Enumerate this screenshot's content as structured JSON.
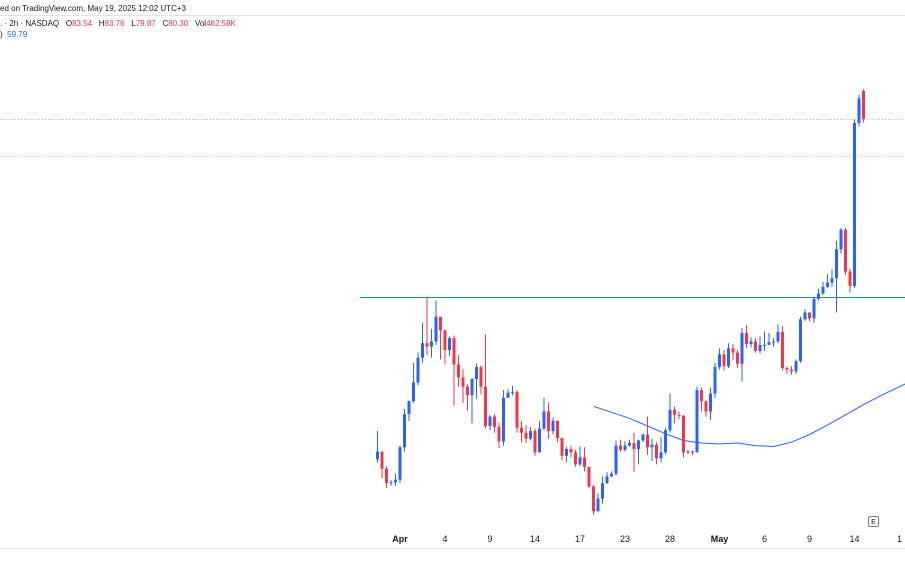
{
  "header": {
    "publish_text": "ed on TradingView.com, May 19, 2025 12:02 UTC+3",
    "symbol_text": ". · 2h · NASDAQ",
    "ohlc": [
      {
        "label": "O",
        "value": "83.54"
      },
      {
        "label": "H",
        "value": "83.76"
      },
      {
        "label": "L",
        "value": "79.87"
      },
      {
        "label": "C",
        "value": "80.30"
      },
      {
        "label": "Vol",
        "value": "462.58K"
      }
    ],
    "sma_prefix": ")",
    "sma_value": "59.79"
  },
  "colors": {
    "up": "#2962ff",
    "down": "#f23645",
    "sma": "#2962ff",
    "support_line": "#089981",
    "dotted_line": "#f7a3aa",
    "text": "#131722"
  },
  "e_marker": "E",
  "chart_data": {
    "type": "candlestick",
    "x_ticks": [
      {
        "label": "Apr",
        "bold": true
      },
      {
        "label": "4",
        "bold": false
      },
      {
        "label": "9",
        "bold": false
      },
      {
        "label": "14",
        "bold": false
      },
      {
        "label": "17",
        "bold": false
      },
      {
        "label": "23",
        "bold": false
      },
      {
        "label": "28",
        "bold": false
      },
      {
        "label": "May",
        "bold": true
      },
      {
        "label": "6",
        "bold": false
      },
      {
        "label": "9",
        "bold": false
      },
      {
        "label": "14",
        "bold": false
      },
      {
        "label": "1",
        "bold": false
      }
    ],
    "ylim": [
      30,
      90
    ],
    "horizontal_levels": [
      {
        "name": "resistance-upper",
        "value": 80.3,
        "style": "dotted"
      },
      {
        "name": "resistance-lower",
        "value": 75.9,
        "style": "dotted"
      },
      {
        "name": "support",
        "value": 59.4,
        "style": "solid"
      }
    ],
    "candles": [
      [
        40.4,
        41.3,
        43.7,
        40.0
      ],
      [
        41.3,
        39.3,
        41.3,
        38.2
      ],
      [
        39.3,
        37.6,
        39.6,
        37.0
      ],
      [
        37.6,
        37.7,
        38.0,
        37.3
      ],
      [
        37.7,
        38.0,
        38.7,
        37.3
      ],
      [
        38.0,
        41.8,
        42.0,
        37.6
      ],
      [
        41.8,
        45.7,
        46.3,
        41.3
      ],
      [
        45.7,
        47.2,
        47.3,
        44.9
      ],
      [
        47.2,
        49.4,
        51.7,
        47.0
      ],
      [
        49.4,
        52.3,
        52.9,
        49.1
      ],
      [
        52.3,
        54.0,
        56.4,
        51.7
      ],
      [
        54.0,
        53.6,
        59.4,
        52.6
      ],
      [
        53.6,
        54.2,
        55.7,
        52.3
      ],
      [
        54.2,
        57.1,
        59.0,
        53.8
      ],
      [
        57.1,
        55.5,
        57.1,
        52.1
      ],
      [
        55.5,
        53.2,
        55.6,
        51.5
      ],
      [
        53.2,
        54.6,
        54.8,
        52.5
      ],
      [
        54.6,
        51.5,
        54.9,
        46.7
      ],
      [
        51.5,
        50.0,
        52.6,
        48.9
      ],
      [
        50.0,
        48.9,
        51.0,
        47.0
      ],
      [
        48.9,
        47.9,
        49.2,
        46.1
      ],
      [
        47.9,
        49.8,
        49.9,
        44.6
      ],
      [
        49.8,
        51.2,
        51.6,
        47.5
      ],
      [
        51.2,
        48.9,
        51.4,
        48.0
      ],
      [
        48.9,
        44.3,
        55.0,
        44.0
      ],
      [
        44.3,
        45.4,
        45.6,
        43.8
      ],
      [
        45.4,
        44.2,
        45.7,
        43.5
      ],
      [
        44.2,
        42.5,
        44.7,
        41.7
      ],
      [
        42.5,
        47.6,
        48.5,
        42.0
      ],
      [
        47.6,
        48.2,
        48.6,
        47.7
      ],
      [
        48.2,
        48.3,
        49.0,
        47.9
      ],
      [
        48.3,
        44.1,
        48.5,
        43.5
      ],
      [
        44.1,
        43.5,
        44.9,
        42.4
      ],
      [
        43.5,
        42.8,
        44.4,
        42.3
      ],
      [
        42.8,
        43.7,
        44.2,
        42.6
      ],
      [
        43.7,
        41.2,
        44.0,
        40.8
      ],
      [
        41.2,
        44.0,
        44.9,
        41.8
      ],
      [
        44.0,
        46.0,
        47.6,
        43.8
      ],
      [
        46.0,
        43.7,
        47.1,
        42.8
      ],
      [
        43.7,
        44.9,
        45.3,
        43.3
      ],
      [
        44.9,
        42.9,
        44.9,
        42.4
      ],
      [
        42.9,
        40.8,
        42.9,
        40.3
      ],
      [
        40.8,
        41.6,
        41.9,
        40.1
      ],
      [
        41.6,
        41.2,
        42.0,
        40.6
      ],
      [
        41.2,
        39.8,
        41.5,
        39.5
      ],
      [
        39.8,
        40.6,
        41.9,
        39.6
      ],
      [
        40.6,
        39.5,
        41.8,
        39.0
      ],
      [
        39.5,
        37.2,
        39.5,
        37.0
      ],
      [
        37.2,
        34.3,
        37.4,
        33.9
      ],
      [
        34.3,
        35.8,
        36.4,
        35.0
      ],
      [
        35.8,
        37.6,
        38.4,
        35.2
      ],
      [
        37.6,
        38.4,
        38.9,
        37.5
      ],
      [
        38.4,
        38.7,
        39.0,
        38.3
      ],
      [
        38.7,
        42.0,
        42.6,
        38.5
      ],
      [
        42.0,
        41.5,
        42.7,
        41.3
      ],
      [
        41.5,
        42.0,
        42.5,
        41.3
      ],
      [
        42.0,
        42.3,
        42.7,
        41.9
      ],
      [
        42.3,
        41.6,
        43.5,
        38.9
      ],
      [
        41.6,
        42.6,
        42.7,
        39.8
      ],
      [
        42.6,
        43.3,
        43.4,
        42.4
      ],
      [
        43.3,
        41.8,
        45.4,
        40.9
      ],
      [
        41.8,
        42.1,
        42.8,
        40.2
      ],
      [
        42.1,
        40.5,
        42.4,
        39.8
      ],
      [
        40.5,
        41.2,
        43.0,
        40.0
      ],
      [
        41.2,
        43.8,
        44.1,
        41.0
      ],
      [
        43.8,
        46.2,
        48.1,
        43.5
      ],
      [
        46.2,
        45.6,
        46.6,
        44.6
      ],
      [
        45.6,
        45.5,
        46.0,
        45.1
      ],
      [
        45.5,
        41.2,
        45.6,
        40.6
      ],
      [
        41.2,
        41.3,
        41.5,
        41.0
      ],
      [
        41.3,
        41.2,
        41.4,
        40.9
      ],
      [
        41.2,
        48.5,
        48.9,
        45.8
      ],
      [
        48.5,
        47.2,
        48.8,
        46.0
      ],
      [
        47.2,
        46.0,
        47.3,
        45.4
      ],
      [
        46.0,
        48.1,
        48.8,
        45.0
      ],
      [
        48.1,
        51.2,
        51.7,
        47.6
      ],
      [
        51.2,
        52.7,
        53.4,
        50.9
      ],
      [
        52.7,
        51.3,
        53.2,
        50.8
      ],
      [
        51.3,
        53.4,
        54.0,
        51.1
      ],
      [
        53.4,
        52.9,
        53.9,
        52.0
      ],
      [
        52.9,
        51.6,
        53.2,
        51.1
      ],
      [
        51.6,
        55.2,
        55.8,
        49.5
      ],
      [
        55.2,
        53.9,
        56.1,
        53.4
      ],
      [
        53.9,
        54.2,
        54.7,
        53.5
      ],
      [
        54.2,
        53.1,
        54.6,
        52.9
      ],
      [
        53.1,
        53.8,
        54.8,
        52.8
      ],
      [
        53.8,
        53.8,
        55.4,
        53.1
      ],
      [
        53.8,
        54.1,
        55.2,
        53.9
      ],
      [
        54.1,
        54.2,
        54.6,
        53.6
      ],
      [
        54.2,
        55.3,
        56.2,
        54.0
      ],
      [
        55.3,
        51.1,
        56.0,
        50.8
      ],
      [
        51.1,
        50.9,
        51.3,
        50.4
      ],
      [
        50.9,
        50.7,
        51.3,
        50.3
      ],
      [
        50.7,
        51.9,
        52.1,
        50.4
      ],
      [
        51.9,
        56.8,
        57.1,
        51.7
      ],
      [
        56.8,
        57.6,
        58.0,
        56.6
      ],
      [
        57.6,
        56.9,
        57.6,
        56.6
      ],
      [
        56.9,
        59.2,
        59.3,
        56.4
      ],
      [
        59.2,
        59.8,
        60.4,
        59.0
      ],
      [
        59.8,
        60.6,
        61.2,
        59.7
      ],
      [
        60.6,
        61.1,
        62.1,
        60.5
      ],
      [
        61.1,
        61.6,
        62.7,
        60.6
      ],
      [
        61.6,
        65.0,
        66.0,
        57.6
      ],
      [
        65.0,
        67.3,
        67.5,
        64.5
      ],
      [
        67.3,
        62.4,
        67.5,
        62.0
      ],
      [
        62.4,
        60.7,
        62.7,
        59.9
      ],
      [
        60.7,
        79.8,
        80.2,
        60.5
      ],
      [
        79.8,
        82.7,
        83.1,
        79.4
      ],
      [
        83.54,
        80.3,
        83.76,
        79.87
      ]
    ],
    "sma": [
      {
        "i": 48,
        "v": 46.6
      },
      {
        "i": 52,
        "v": 45.9
      },
      {
        "i": 56,
        "v": 45.2
      },
      {
        "i": 60,
        "v": 44.3
      },
      {
        "i": 64,
        "v": 43.4
      },
      {
        "i": 68,
        "v": 42.6
      },
      {
        "i": 72,
        "v": 42.3
      },
      {
        "i": 76,
        "v": 42.2
      },
      {
        "i": 80,
        "v": 42.3
      },
      {
        "i": 84,
        "v": 42.0
      },
      {
        "i": 88,
        "v": 41.9
      },
      {
        "i": 92,
        "v": 42.4
      },
      {
        "i": 96,
        "v": 43.3
      },
      {
        "i": 100,
        "v": 44.4
      },
      {
        "i": 104,
        "v": 45.6
      },
      {
        "i": 108,
        "v": 46.8
      },
      {
        "i": 112,
        "v": 47.9
      },
      {
        "i": 116,
        "v": 48.9
      },
      {
        "i": 120,
        "v": 49.9
      },
      {
        "i": 124,
        "v": 50.5
      },
      {
        "i": 128,
        "v": 51.0
      },
      {
        "i": 132,
        "v": 51.7
      },
      {
        "i": 136,
        "v": 53.0
      },
      {
        "i": 140,
        "v": 54.5
      },
      {
        "i": 144,
        "v": 56.0
      },
      {
        "i": 148,
        "v": 57.5
      },
      {
        "i": 152,
        "v": 58.5
      },
      {
        "i": 155,
        "v": 59.79
      }
    ]
  }
}
